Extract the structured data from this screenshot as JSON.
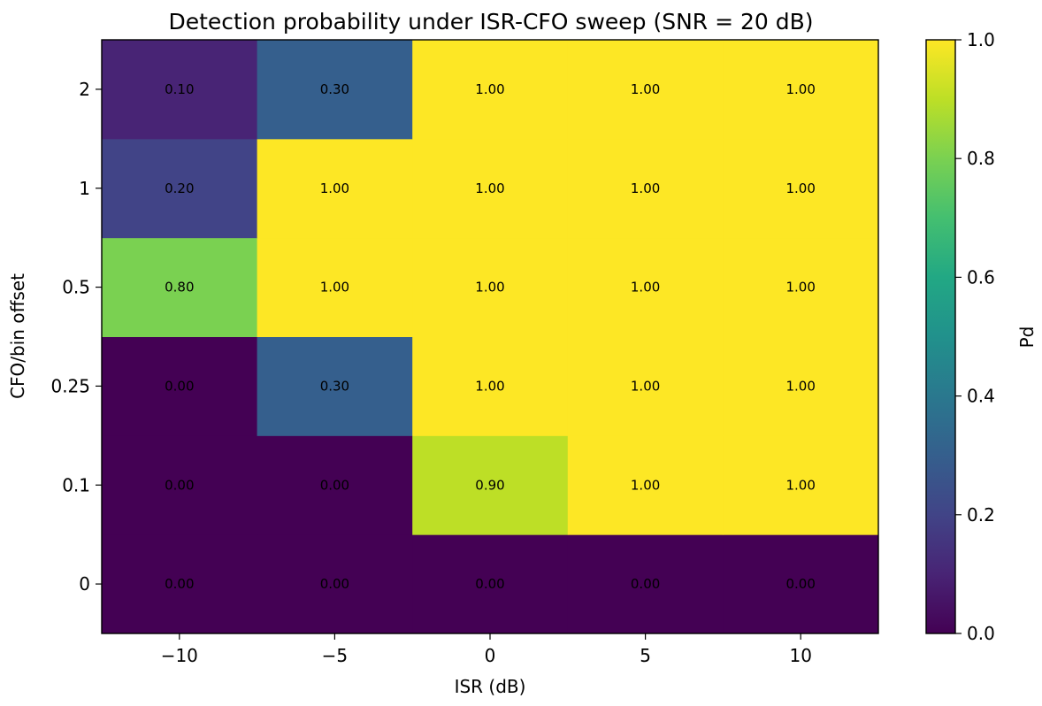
{
  "chart_data": {
    "type": "heatmap",
    "title": "Detection probability under ISR-CFO sweep (SNR = 20 dB)",
    "xlabel": "ISR (dB)",
    "ylabel": "CFO/bin offset",
    "x_categories": [
      "−10",
      "−5",
      "0",
      "5",
      "10"
    ],
    "y_categories": [
      "0",
      "0.1",
      "0.25",
      "0.5",
      "1",
      "2"
    ],
    "values": [
      [
        0.0,
        0.0,
        0.0,
        0.0,
        0.0
      ],
      [
        0.0,
        0.0,
        0.9,
        1.0,
        1.0
      ],
      [
        0.0,
        0.3,
        1.0,
        1.0,
        1.0
      ],
      [
        0.8,
        1.0,
        1.0,
        1.0,
        1.0
      ],
      [
        0.2,
        1.0,
        1.0,
        1.0,
        1.0
      ],
      [
        0.1,
        0.3,
        1.0,
        1.0,
        1.0
      ]
    ],
    "cell_labels": [
      [
        "0.00",
        "0.00",
        "0.00",
        "0.00",
        "0.00"
      ],
      [
        "0.00",
        "0.00",
        "0.90",
        "1.00",
        "1.00"
      ],
      [
        "0.00",
        "0.30",
        "1.00",
        "1.00",
        "1.00"
      ],
      [
        "0.80",
        "1.00",
        "1.00",
        "1.00",
        "1.00"
      ],
      [
        "0.20",
        "1.00",
        "1.00",
        "1.00",
        "1.00"
      ],
      [
        "0.10",
        "0.30",
        "1.00",
        "1.00",
        "1.00"
      ]
    ],
    "colormap": "viridis",
    "colorbar": {
      "label": "Pd",
      "range": [
        0.0,
        1.0
      ],
      "ticks": [
        "0.0",
        "0.2",
        "0.4",
        "0.6",
        "0.8",
        "1.0"
      ]
    },
    "grid": false
  }
}
